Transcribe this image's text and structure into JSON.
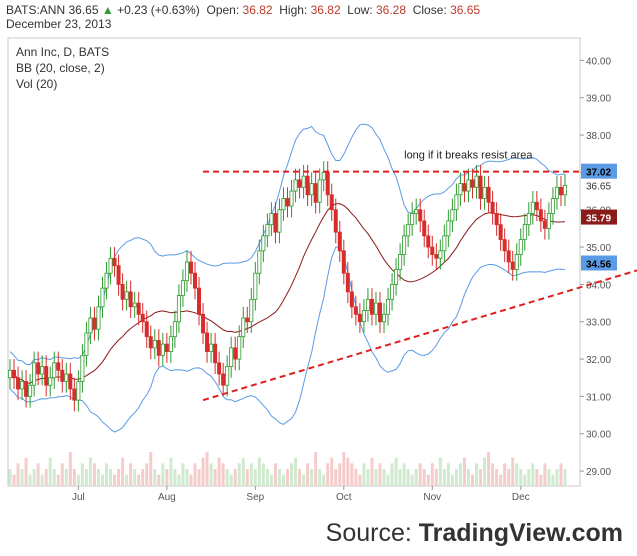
{
  "header": {
    "symbol": "BATS:ANN",
    "last": "36.65",
    "change": "+0.23 (+0.63%)",
    "open_label": "Open:",
    "open": "36.82",
    "high_label": "High:",
    "high": "36.82",
    "low_label": "Low:",
    "low": "36.28",
    "close_label": "Close:",
    "close": "36.65",
    "date": "December 23, 2013",
    "up_color": "#2e9b2e",
    "value_color": "#c0392b"
  },
  "source": {
    "prefix": "Source: ",
    "brand": "TradingView.com"
  },
  "chart_data": {
    "type": "candlestick",
    "legend": [
      "Ann Inc, D, BATS",
      "BB (20, close, 2)",
      "Vol (20)"
    ],
    "y_ticks": [
      "40.00",
      "39.00",
      "38.00",
      "37.00",
      "36.00",
      "35.00",
      "34.00",
      "33.00",
      "32.00",
      "31.00",
      "30.00",
      "29.00"
    ],
    "y_range": [
      28.6,
      40.6
    ],
    "x_ticks": [
      "Jul",
      "Aug",
      "Sep",
      "Oct",
      "Nov",
      "Dec"
    ],
    "price_tags": [
      {
        "label": "37.02",
        "value": 37.02,
        "color": "#5b9be6",
        "text_color": "#000000"
      },
      {
        "label": "36.65",
        "value": 36.65,
        "color": "",
        "text_color": "#333333"
      },
      {
        "label": "35.79",
        "value": 35.79,
        "color": "#8b1a1a",
        "text_color": "#ffffff"
      },
      {
        "label": "34.56",
        "value": 34.56,
        "color": "#5b9be6",
        "text_color": "#000000"
      }
    ],
    "annotation": "long if it breaks resist area",
    "resistance_level": 37.02,
    "support_line": [
      {
        "x_index": 48,
        "y": 30.9
      },
      {
        "x_index": 166,
        "y": 34.7
      }
    ],
    "colors": {
      "up": "#2e9b2e",
      "down": "#d62d2d",
      "bands": "#5b9be6",
      "middle": "#8b1a1a",
      "dashed": "#e02020",
      "vol_up": "#cfeacf",
      "vol_down": "#f5cccc"
    },
    "closes": [
      31.7,
      31.5,
      31.2,
      31.4,
      31.0,
      31.3,
      31.9,
      31.6,
      31.8,
      31.3,
      31.5,
      31.9,
      31.7,
      31.4,
      31.6,
      31.2,
      30.9,
      31.4,
      32.1,
      32.7,
      33.1,
      32.8,
      33.4,
      33.9,
      34.3,
      34.7,
      34.5,
      34.0,
      33.6,
      33.8,
      33.4,
      33.5,
      33.2,
      33.0,
      32.6,
      32.3,
      32.5,
      32.1,
      32.4,
      32.2,
      32.6,
      33.0,
      33.7,
      34.1,
      34.6,
      34.3,
      33.9,
      33.2,
      32.7,
      32.2,
      32.4,
      31.9,
      31.6,
      31.3,
      31.8,
      32.3,
      32.0,
      32.6,
      33.1,
      33.0,
      33.6,
      34.3,
      34.9,
      35.3,
      35.6,
      35.9,
      35.4,
      36.0,
      36.3,
      36.1,
      36.5,
      36.8,
      36.6,
      36.9,
      36.4,
      36.7,
      36.2,
      36.8,
      37.0,
      36.4,
      36.0,
      35.4,
      34.9,
      34.3,
      33.8,
      33.4,
      33.2,
      33.0,
      33.3,
      33.6,
      33.2,
      33.5,
      33.0,
      33.2,
      33.6,
      34.0,
      34.4,
      34.8,
      35.3,
      35.6,
      35.9,
      36.0,
      35.7,
      35.3,
      35.0,
      34.8,
      34.7,
      34.9,
      35.3,
      35.7,
      36.0,
      36.4,
      36.7,
      36.5,
      36.8,
      36.6,
      36.9,
      36.3,
      36.6,
      36.2,
      35.9,
      35.6,
      35.2,
      34.9,
      34.6,
      34.4,
      34.8,
      35.2,
      35.6,
      35.9,
      36.2,
      36.0,
      35.7,
      35.5,
      35.9,
      36.3,
      36.6,
      36.4,
      36.65
    ],
    "highs_offset": 0.3,
    "lows_offset": 0.3,
    "volume": [
      3,
      2,
      4,
      3,
      5,
      2,
      3,
      4,
      2,
      3,
      5,
      3,
      2,
      4,
      3,
      6,
      3,
      2,
      4,
      3,
      5,
      4,
      3,
      2,
      4,
      3,
      2,
      3,
      5,
      2,
      4,
      3,
      2,
      3,
      4,
      6,
      3,
      2,
      4,
      3,
      5,
      3,
      2,
      4,
      3,
      2,
      4,
      3,
      5,
      6,
      4,
      3,
      5,
      4,
      3,
      2,
      3,
      4,
      5,
      3,
      4,
      3,
      5,
      4,
      3,
      2,
      4,
      3,
      2,
      3,
      4,
      5,
      3,
      2,
      4,
      3,
      6,
      3,
      2,
      4,
      5,
      3,
      4,
      6,
      5,
      4,
      3,
      2,
      4,
      3,
      5,
      3,
      4,
      3,
      2,
      4,
      5,
      3,
      4,
      3,
      2,
      3,
      4,
      3,
      2,
      4,
      3,
      5,
      3,
      4,
      2,
      3,
      4,
      5,
      3,
      2,
      4,
      3,
      5,
      6,
      4,
      3,
      2,
      4,
      3,
      5,
      4,
      3,
      2,
      3,
      4,
      3,
      2,
      4,
      3,
      2,
      3,
      4,
      3
    ]
  }
}
